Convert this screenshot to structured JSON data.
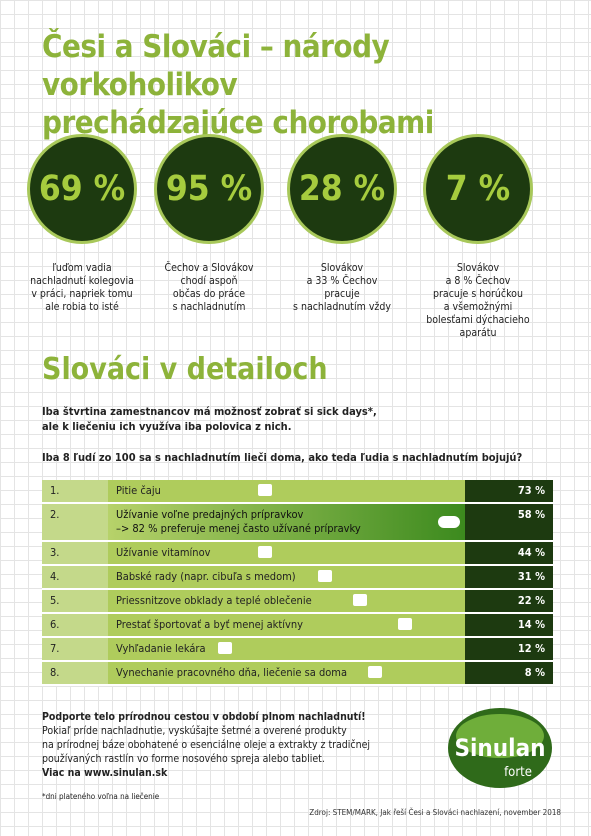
{
  "header": {
    "title_lines": [
      "Česi a Slováci – národy vorkoholikov",
      "prechádzajúce chorobami"
    ]
  },
  "stats": [
    {
      "value": "69 %",
      "lines": [
        "ľuďom vadia",
        "nachladnutí kolegovia",
        "v práci, napriek tomu",
        "ale robia to isté"
      ]
    },
    {
      "value": "95 %",
      "lines": [
        "Čechov a Slovákov",
        "chodí aspoň",
        "občas do práce",
        "s nachladnutím"
      ]
    },
    {
      "value": "28 %",
      "lines": [
        "Slovákov",
        "a 33 % Čechov",
        "pracuje",
        "s nachladnutím vždy"
      ]
    },
    {
      "value": "7 %",
      "lines": [
        "Slovákov",
        "a 8 % Čechov",
        "pracuje s horúčkou",
        "a všemožnými",
        "bolesťami dýchacieho",
        "aparátu"
      ]
    }
  ],
  "section": {
    "title": "Slováci v detailoch",
    "intro_lines": [
      "Iba štvrtina zamestnancov má možnosť zobrať si sick days*,",
      "ale k liečeniu ich využíva iba polovica z nich."
    ],
    "question": "Iba 8 ľudí zo 100 sa s nachladnutím lieči doma, ako teda ľudia s nachladnutím bojujú?"
  },
  "table": {
    "rows": [
      [
        "1.",
        [
          "Pitie čaju"
        ],
        "73 %"
      ],
      [
        "2.",
        [
          "Užívanie voľne predajných prípravkov",
          "–> 82 % preferuje menej často užívané prípravky"
        ],
        "58 %"
      ],
      [
        "3.",
        [
          "Užívanie vitamínov"
        ],
        "44 %"
      ],
      [
        "4.",
        [
          "Babské rady (napr. cibuľa s medom)"
        ],
        "31 %"
      ],
      [
        "5.",
        [
          "Priessnitzove obklady a teplé oblečenie"
        ],
        "22 %"
      ],
      [
        "6.",
        [
          "Prestať športovať a byť menej aktívny"
        ],
        "14 %"
      ],
      [
        "7.",
        [
          "Vyhľadanie lekára"
        ],
        "12 %"
      ],
      [
        "8.",
        [
          "Vynechanie pracovného dňa, liečenie sa doma"
        ],
        "8 %"
      ]
    ]
  },
  "footer": {
    "heading": "Podporte telo prírodnou cestou v období plnom nachladnutí!",
    "body_lines": [
      "Pokiaľ príde nachladnutie, vyskúšajte šetrné a overené produkty",
      "na prírodnej báze obohatené o esenciálne oleje a extrakty z tradičnej",
      "používaných rastlín vo forme nosového spreja alebo tabliet."
    ],
    "link": "Viac na www.sinulan.sk",
    "footnote": "*dni plateného voľna na liečenie",
    "source": "Zdroj: STEM/MARK, Jak řeší Česi a Slováci nachlazení, november 2018"
  },
  "logo": {
    "brand": "Sinulan",
    "sub": "forte"
  }
}
